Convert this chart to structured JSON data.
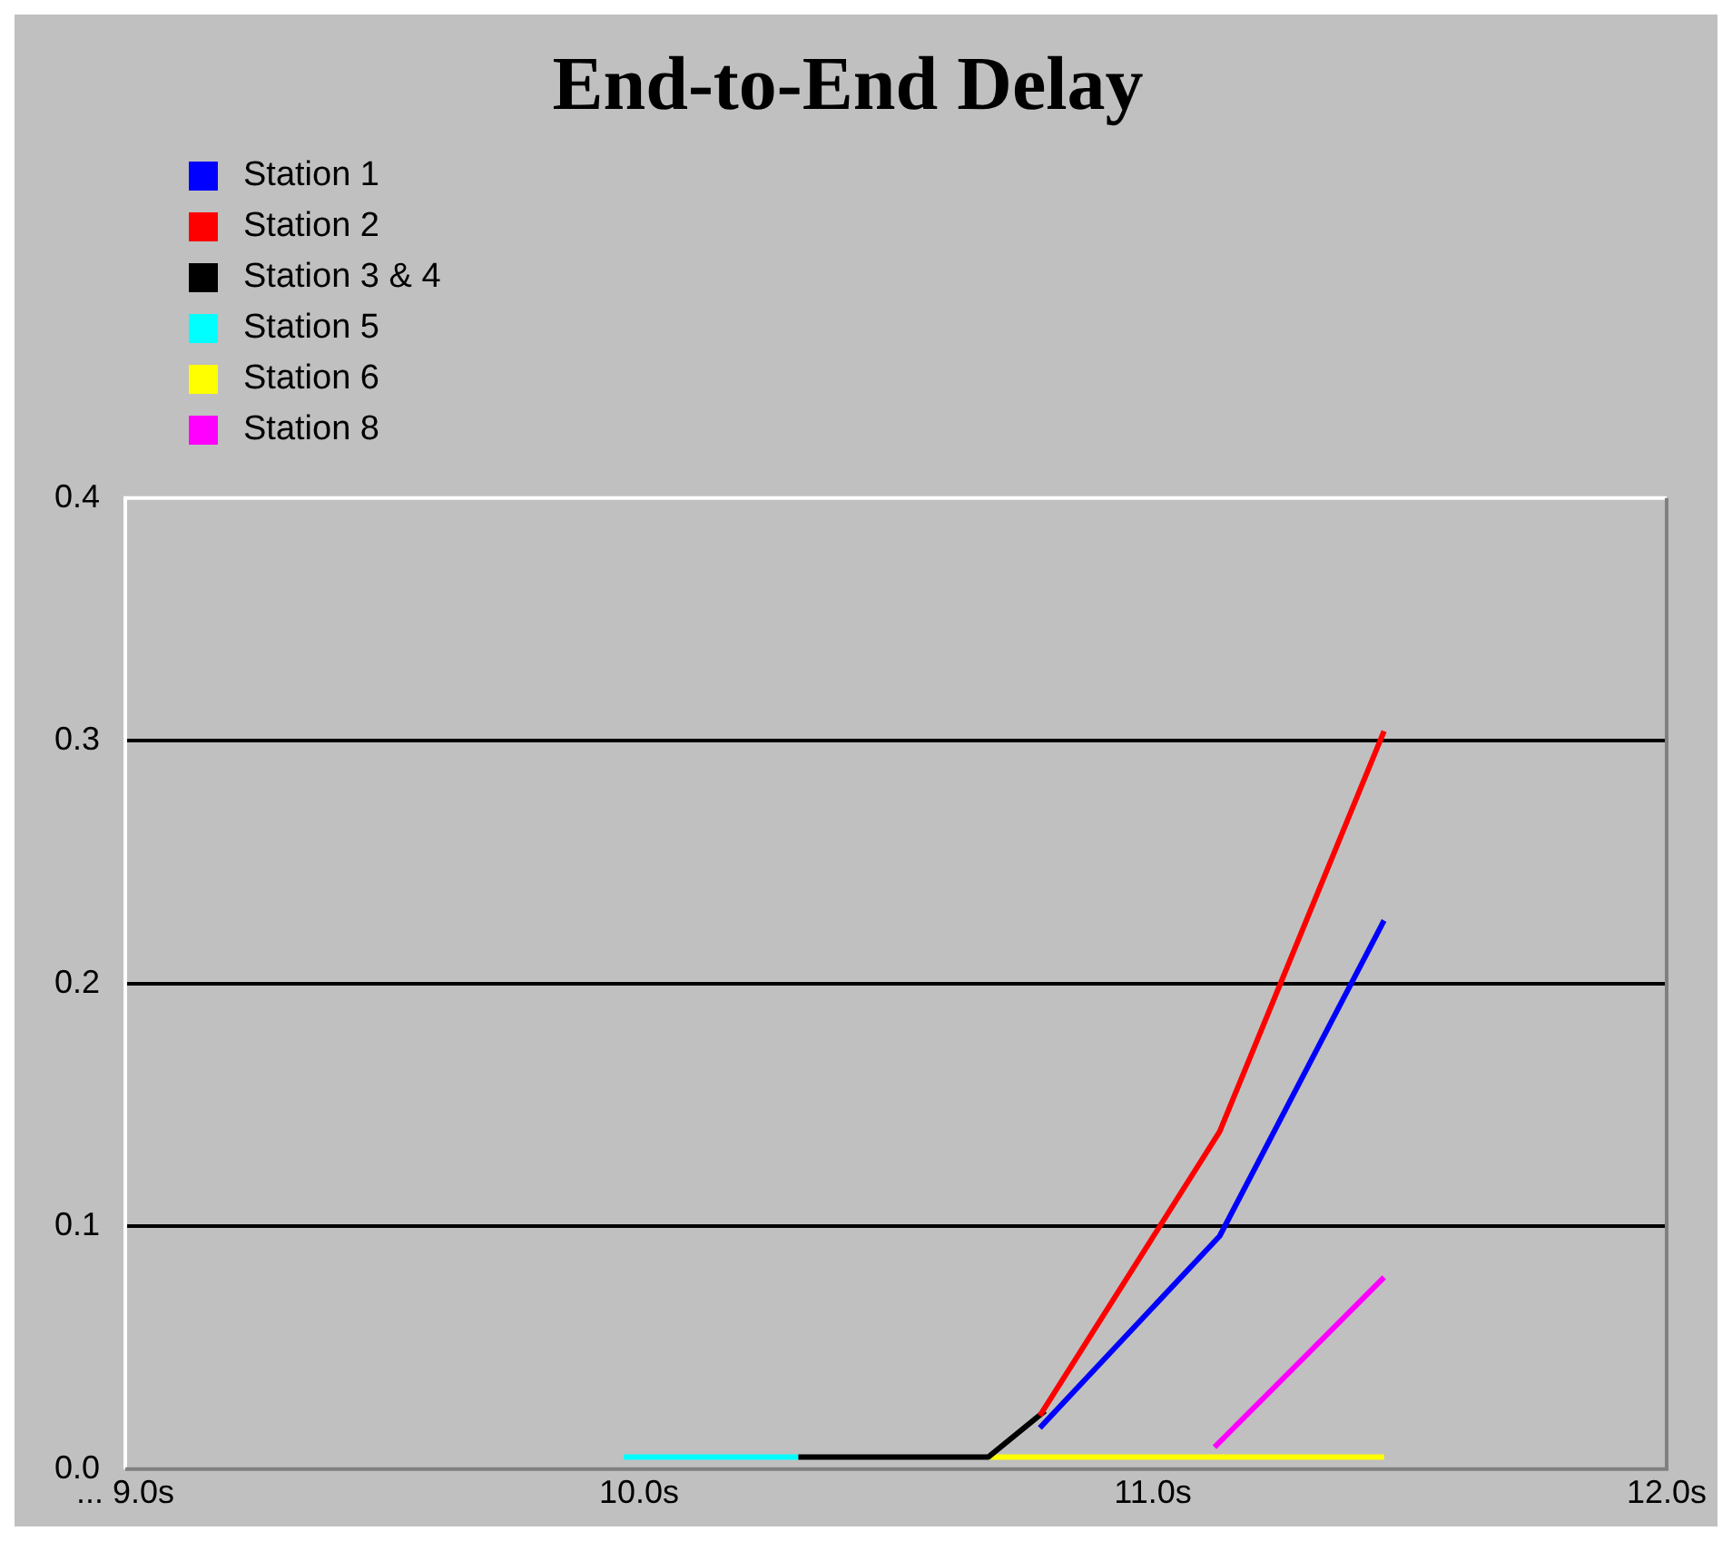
{
  "chart_data": {
    "type": "line",
    "title": "End-to-End Delay",
    "series": [
      {
        "name": "Station 1",
        "color": "#0000ff",
        "x": [
          10.78,
          11.13,
          11.45
        ],
        "values": [
          0.017,
          0.096,
          0.226
        ]
      },
      {
        "name": "Station 2",
        "color": "#ff0000",
        "x": [
          10.78,
          11.13,
          11.45
        ],
        "values": [
          0.022,
          0.139,
          0.304
        ]
      },
      {
        "name": "Station 3 & 4",
        "color": "#000000",
        "x": [
          10.31,
          10.68,
          10.79
        ],
        "values": [
          0.005,
          0.005,
          0.024
        ]
      },
      {
        "name": "Station 5",
        "color": "#00ffff",
        "x": [
          9.97,
          10.31
        ],
        "values": [
          0.005,
          0.005
        ]
      },
      {
        "name": "Station 6",
        "color": "#ffff00",
        "x": [
          10.68,
          11.45
        ],
        "values": [
          0.005,
          0.005
        ]
      },
      {
        "name": "Station 8",
        "color": "#ff00ff",
        "x": [
          11.12,
          11.45
        ],
        "values": [
          0.009,
          0.079
        ]
      }
    ],
    "xlim": [
      9,
      12
    ],
    "xticks": [
      {
        "value": 9,
        "label": "... 9.0s"
      },
      {
        "value": 10,
        "label": "10.0s"
      },
      {
        "value": 11,
        "label": "11.0s"
      },
      {
        "value": 12,
        "label": "12.0s"
      }
    ],
    "ylim": [
      0,
      0.4
    ],
    "yticks": [
      {
        "value": 0,
        "label": "0.0"
      },
      {
        "value": 0.1,
        "label": "0.1"
      },
      {
        "value": 0.2,
        "label": "0.2"
      },
      {
        "value": 0.3,
        "label": "0.3"
      },
      {
        "value": 0.4,
        "label": "0.4"
      }
    ],
    "grid": "y",
    "legend": "top left",
    "marker": "none",
    "line_style": "solid"
  }
}
